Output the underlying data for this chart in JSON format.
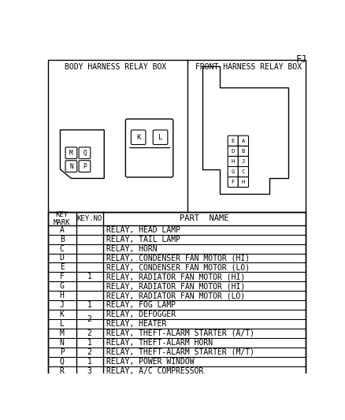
{
  "title_text": "FJ",
  "body_box_title": "BODY HARNESS RELAY BOX",
  "front_box_title": "FRONT HARNESS RELAY BOX",
  "rows": [
    {
      "mark": "A",
      "part": "RELAY, HEAD LAMP"
    },
    {
      "mark": "B",
      "part": "RELAY, TAIL LAMP"
    },
    {
      "mark": "C",
      "part": "RELAY, HORN"
    },
    {
      "mark": "D",
      "part": "RELAY, CONDENSER FAN MOTOR (HI)"
    },
    {
      "mark": "E",
      "part": "RELAY, CONDENSER FAN MOTOR (LO)"
    },
    {
      "mark": "F",
      "part": "RELAY, RADIATOR FAN MOTOR (HI)"
    },
    {
      "mark": "G",
      "part": "RELAY, RADIATOR FAN MOTOR (HI)"
    },
    {
      "mark": "H",
      "part": "RELAY, RADIATOR FAN MOTOR (LO)"
    },
    {
      "mark": "J",
      "part": "RELAY, FOG LAMP"
    },
    {
      "mark": "K",
      "part": "RELAY, DEFOGGER"
    },
    {
      "mark": "L",
      "part": "RELAY, HEATER"
    },
    {
      "mark": "M",
      "part": "RELAY, THEFT-ALARM STARTER (A/T)"
    },
    {
      "mark": "N",
      "part": "RELAY, THEFT-ALARM HORN"
    },
    {
      "mark": "P",
      "part": "RELAY, THEFT-ALARM STARTER (M/T)"
    },
    {
      "mark": "Q",
      "part": "RELAY, POWER WINDOW"
    },
    {
      "mark": "R",
      "part": "RELAY, A/C COMPRESSOR"
    }
  ],
  "keyno_entries": [
    [
      3,
      7,
      "1"
    ],
    [
      8,
      8,
      "1"
    ],
    [
      9,
      10,
      "2"
    ],
    [
      11,
      11,
      "2"
    ],
    [
      12,
      12,
      "1"
    ],
    [
      13,
      13,
      "2"
    ],
    [
      14,
      14,
      "1"
    ],
    [
      15,
      15,
      "3"
    ]
  ],
  "bg_color": "#ffffff",
  "line_color": "#000000",
  "body_left_labels": [
    [
      "M",
      "Q"
    ],
    [
      "N",
      "P"
    ]
  ],
  "body_right_labels": [
    "K",
    "L"
  ],
  "front_labels": [
    [
      "F",
      "H"
    ],
    [
      "G",
      "C"
    ],
    [
      "H",
      "J"
    ],
    [
      "D",
      "B"
    ],
    [
      "E",
      "A"
    ]
  ]
}
